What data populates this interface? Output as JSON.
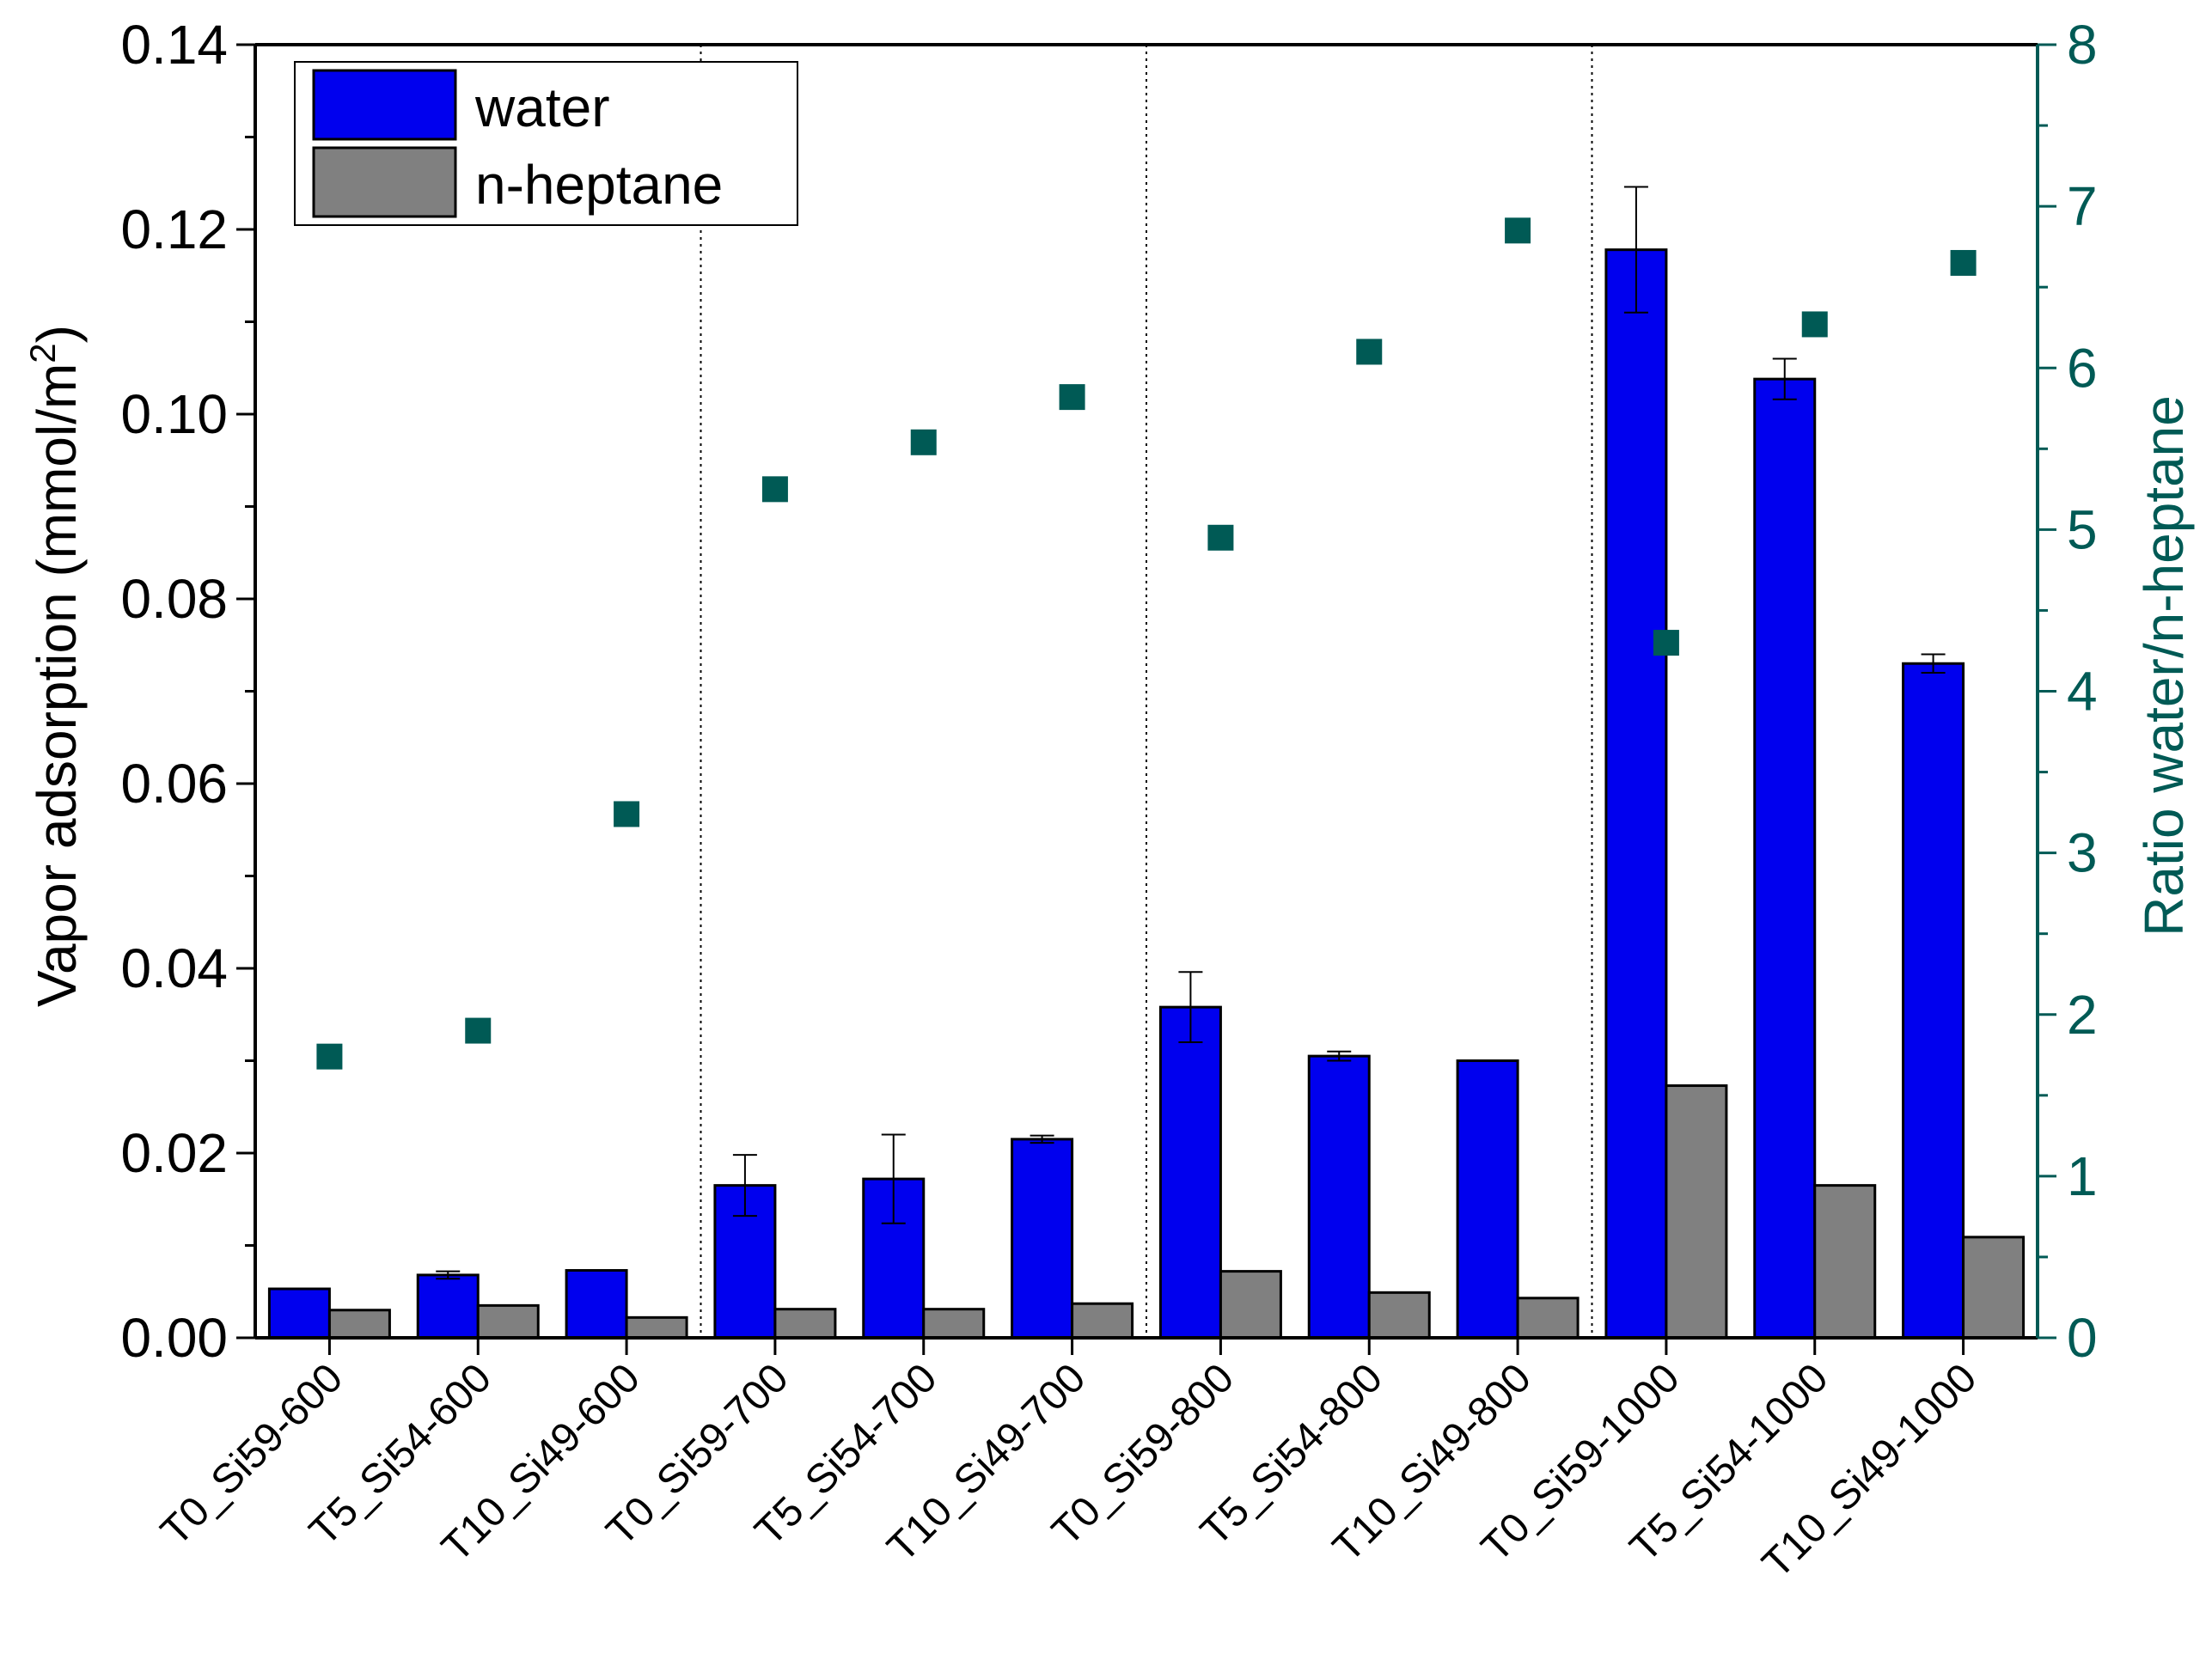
{
  "chart_data": {
    "type": "bar",
    "categories": [
      "T0_Si59-600",
      "T5_Si54-600",
      "T10_Si49-600",
      "T0_Si59-700",
      "T5_Si54-700",
      "T10_Si49-700",
      "T0_Si59-800",
      "T5_Si54-800",
      "T10_Si49-800",
      "T0_Si59-1000",
      "T5_Si54-1000",
      "T10_Si49-1000"
    ],
    "series": [
      {
        "name": "water",
        "axis": "left",
        "color": "#0000ee",
        "values": [
          0.0053,
          0.0068,
          0.0073,
          0.0165,
          0.0172,
          0.0215,
          0.0358,
          0.0305,
          0.03,
          0.1178,
          0.1038,
          0.073
        ],
        "errors": [
          0.0,
          0.0004,
          0.0,
          0.0033,
          0.0048,
          0.0004,
          0.0038,
          0.0005,
          0.0,
          0.0068,
          0.0022,
          0.001
        ]
      },
      {
        "name": "n-heptane",
        "axis": "left",
        "color": "#808080",
        "values": [
          0.003,
          0.0035,
          0.0022,
          0.0031,
          0.0031,
          0.0037,
          0.0072,
          0.0049,
          0.0043,
          0.0273,
          0.0165,
          0.0109
        ]
      },
      {
        "name": "Ratio water/n-heptane",
        "axis": "right",
        "type": "scatter",
        "color": "#005a55",
        "values": [
          1.74,
          1.9,
          3.24,
          5.25,
          5.54,
          5.82,
          4.95,
          6.1,
          6.85,
          4.3,
          6.27,
          6.65
        ]
      }
    ],
    "ylabel": "Vapor adsorption (mmol/m2)",
    "ylabel_parts": {
      "main": "Vapor adsorption (mmol/m",
      "sup": "2",
      "end": ")"
    },
    "y2label": "Ratio water/n-heptane",
    "ylim": [
      0,
      0.14
    ],
    "y2lim": [
      0,
      8
    ],
    "yticks": [
      "0.00",
      "0.02",
      "0.04",
      "0.06",
      "0.08",
      "0.10",
      "0.12",
      "0.14"
    ],
    "y2ticks": [
      "0",
      "1",
      "2",
      "3",
      "4",
      "5",
      "6",
      "7",
      "8"
    ],
    "group_separators_after": [
      2,
      5,
      8
    ],
    "legend": {
      "position": "top-left",
      "entries": [
        "water",
        "n-heptane"
      ]
    },
    "right_axis_color": "#005a55"
  }
}
